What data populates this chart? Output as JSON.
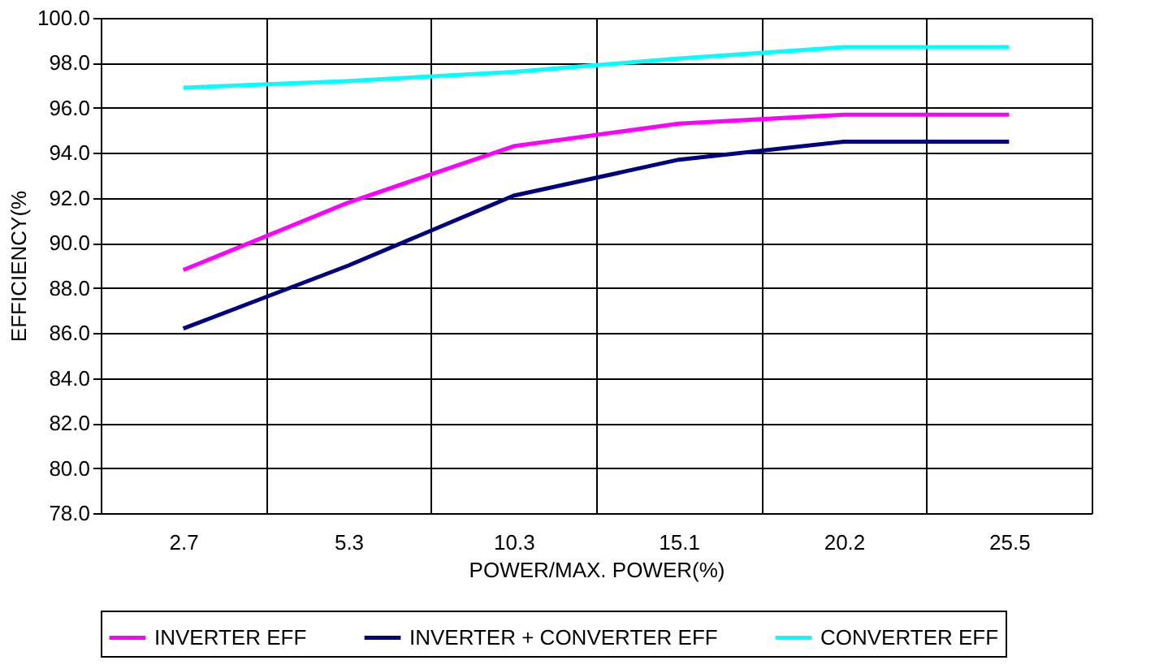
{
  "chart_data": {
    "type": "line",
    "xlabel": "POWER/MAX. POWER(%)",
    "ylabel": "EFFICIENCY(%",
    "categories": [
      "2.7",
      "5.3",
      "10.3",
      "15.1",
      "20.2",
      "25.5"
    ],
    "series": [
      {
        "name": "INVERTER EFF",
        "color": "#ff00ff",
        "values": [
          88.8,
          91.8,
          94.3,
          95.3,
          95.7,
          95.7
        ]
      },
      {
        "name": "INVERTER + CONVERTER EFF",
        "color": "#000080",
        "values": [
          86.2,
          89.0,
          92.1,
          93.7,
          94.5,
          94.5
        ]
      },
      {
        "name": "CONVERTER EFF",
        "color": "#00ffff",
        "values": [
          96.9,
          97.2,
          97.6,
          98.2,
          98.7,
          98.7
        ]
      }
    ],
    "ylim": [
      78,
      100
    ],
    "yticks": [
      {
        "value": 78,
        "label": "78.0"
      },
      {
        "value": 80,
        "label": "80.0"
      },
      {
        "value": 82,
        "label": "82.0"
      },
      {
        "value": 84,
        "label": "84.0"
      },
      {
        "value": 86,
        "label": "86.0"
      },
      {
        "value": 88,
        "label": "88.0"
      },
      {
        "value": 90,
        "label": "90.0"
      },
      {
        "value": 92,
        "label": "92.0"
      },
      {
        "value": 94,
        "label": "94.0"
      },
      {
        "value": 96,
        "label": "96.0"
      },
      {
        "value": 98,
        "label": "98.0"
      },
      {
        "value": 100,
        "label": "100.0"
      }
    ],
    "grid": true,
    "legend": "bottom",
    "marker": "none",
    "line_style": "solid"
  }
}
